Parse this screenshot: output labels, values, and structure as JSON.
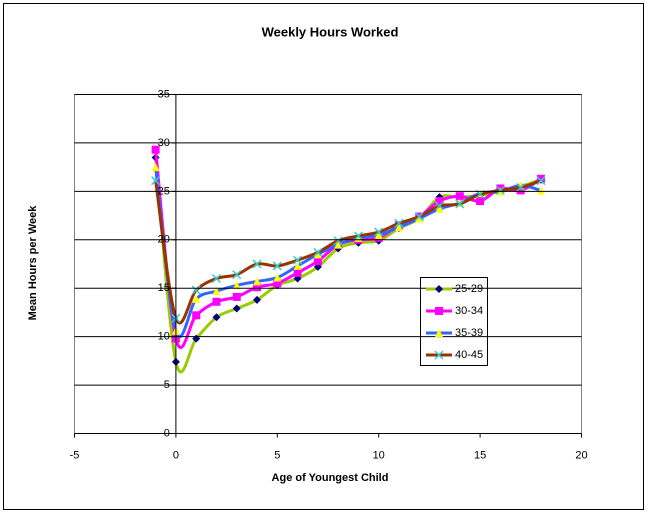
{
  "chart_data": {
    "type": "line",
    "title": "Weekly Hours Worked",
    "x_label": "Age of Youngest Child",
    "y_label": "Mean Hours per Week",
    "x": [
      -1,
      0,
      1,
      2,
      3,
      4,
      5,
      6,
      7,
      8,
      9,
      10,
      11,
      12,
      13,
      14,
      15,
      16,
      17,
      18
    ],
    "series": [
      {
        "name": "25-29",
        "color": "#99cc00",
        "marker": "diamond",
        "marker_color": "#000080",
        "values": [
          28.5,
          7.4,
          9.8,
          12,
          12.9,
          13.8,
          15.3,
          16,
          17.2,
          19.1,
          19.7,
          19.9,
          21.2,
          22.2,
          24.4,
          24.4,
          24.6,
          25,
          25.5,
          26.2
        ]
      },
      {
        "name": "30-34",
        "color": "#ff00ff",
        "marker": "square",
        "marker_color": "#ff00ff",
        "values": [
          29.3,
          9.8,
          12.2,
          13.6,
          14.1,
          15.1,
          15.5,
          16.6,
          17.8,
          19.5,
          20,
          20.2,
          21.5,
          22.4,
          24,
          24.5,
          24,
          25.3,
          25.1,
          26.3
        ]
      },
      {
        "name": "35-39",
        "color": "#3366ff",
        "marker": "triangle",
        "marker_color": "#ffff00",
        "values": [
          27.5,
          10.6,
          13.9,
          14.7,
          15.3,
          15.7,
          16.1,
          17.3,
          18.5,
          19.5,
          20.2,
          20.5,
          21.3,
          22.2,
          23.2,
          23.8,
          24.8,
          25,
          25.6,
          25.1
        ]
      },
      {
        "name": "40-45",
        "color": "#993300",
        "marker": "x",
        "marker_color": "#33cccc",
        "values": [
          26.1,
          11.9,
          14.8,
          16,
          16.4,
          17.5,
          17.3,
          17.9,
          18.7,
          19.9,
          20.4,
          20.8,
          21.7,
          22.4,
          23.5,
          23.7,
          24.7,
          25.1,
          25.4,
          26.1
        ]
      }
    ],
    "xlim": [
      -5,
      20
    ],
    "xticks": [
      -5,
      0,
      5,
      10,
      15,
      20
    ],
    "ylim": [
      0,
      35
    ],
    "yticks": [
      0,
      5,
      10,
      15,
      20,
      25,
      30,
      35
    ],
    "grid": true,
    "smooth": true
  }
}
